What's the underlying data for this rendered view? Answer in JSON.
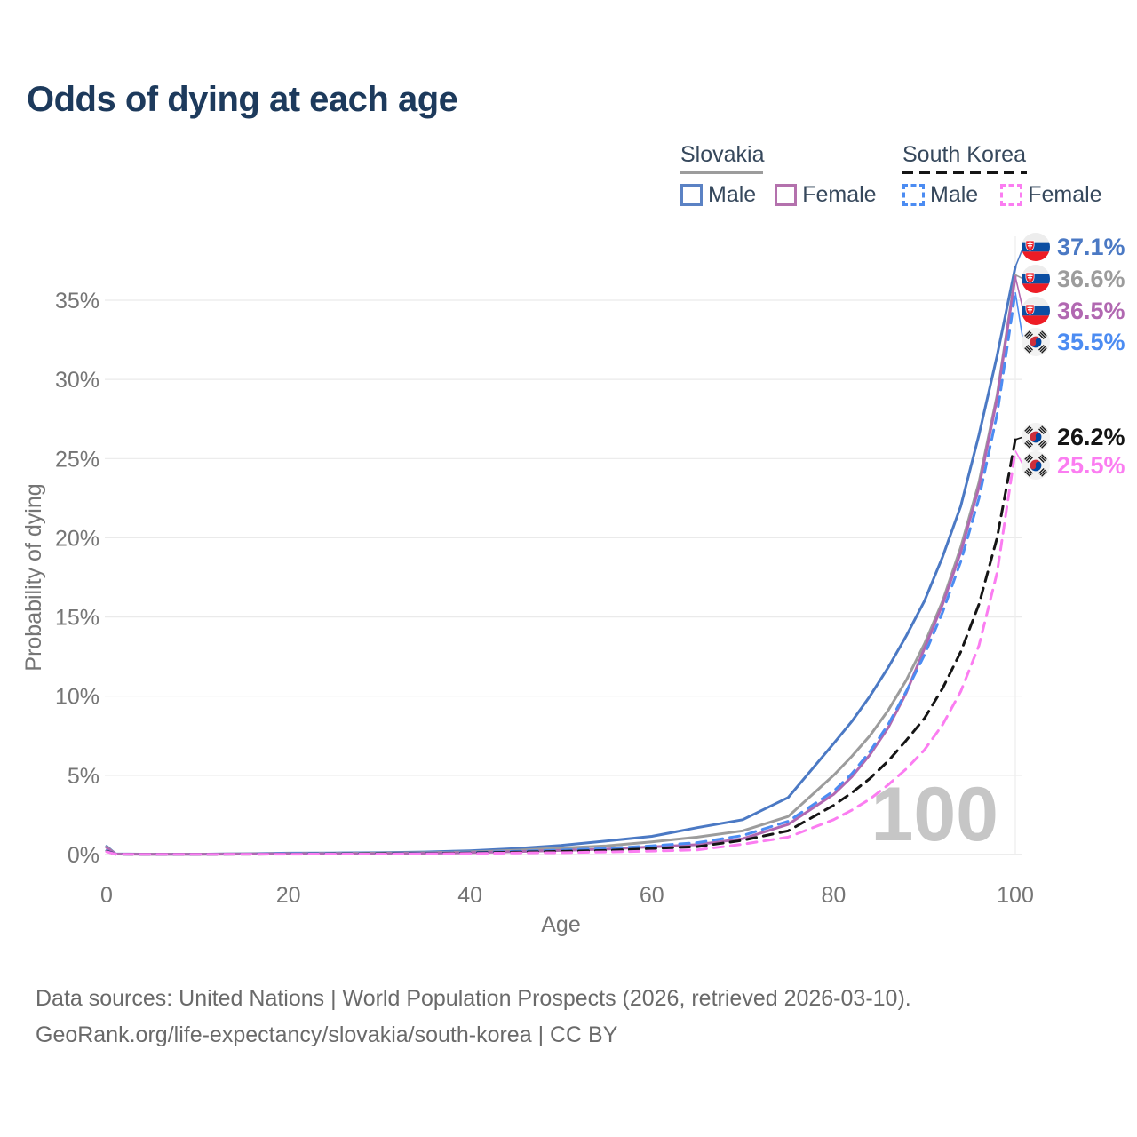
{
  "title": "Odds of dying at each age",
  "legend": {
    "groups": [
      {
        "country": "Slovakia",
        "line_style": "solid",
        "line_color": "#9c9c9c",
        "items": [
          {
            "label": "Male",
            "color": "#5b82c4",
            "style": "solid"
          },
          {
            "label": "Female",
            "color": "#b471ad",
            "style": "solid"
          }
        ]
      },
      {
        "country": "South Korea",
        "line_style": "dashed",
        "line_color": "#151515",
        "items": [
          {
            "label": "Male",
            "color": "#4c8cf2",
            "style": "dashed"
          },
          {
            "label": "Female",
            "color": "#fb7df1",
            "style": "dashed"
          }
        ]
      }
    ]
  },
  "chart_data": {
    "type": "line",
    "title": "Odds of dying at each age",
    "xlabel": "Age",
    "ylabel": "Probability of dying",
    "xlim": [
      0,
      100
    ],
    "ylim_pct": [
      0,
      38.8
    ],
    "xticks": [
      0,
      20,
      40,
      60,
      80,
      100
    ],
    "yticks_pct": [
      0,
      5,
      10,
      15,
      20,
      25,
      30,
      35
    ],
    "grid": "horizontal",
    "legend_position": "top-right",
    "watermark": "100",
    "ages": [
      0,
      1,
      5,
      10,
      15,
      20,
      25,
      30,
      35,
      40,
      45,
      50,
      55,
      60,
      65,
      70,
      75,
      80,
      82,
      84,
      86,
      88,
      90,
      92,
      94,
      96,
      98,
      100
    ],
    "series": [
      {
        "name": "Slovakia Male",
        "country": "Slovakia",
        "sex": "male",
        "flag": "sk",
        "color": "#4b79c4",
        "dash": false,
        "end_label": "37.1%",
        "end_value_pct": 37.1,
        "values": [
          0.52,
          0.04,
          0.02,
          0.02,
          0.05,
          0.09,
          0.1,
          0.12,
          0.16,
          0.24,
          0.38,
          0.58,
          0.85,
          1.15,
          1.7,
          2.2,
          3.6,
          7.0,
          8.4,
          10.0,
          11.8,
          13.8,
          16.0,
          18.8,
          22.0,
          26.5,
          31.5,
          37.1
        ]
      },
      {
        "name": "Slovakia (both sexes)",
        "country": "Slovakia",
        "sex": "total",
        "flag": "sk",
        "color": "#9c9c9c",
        "dash": false,
        "end_label": "36.6%",
        "end_value_pct": 36.6,
        "values": [
          0.48,
          0.03,
          0.02,
          0.02,
          0.04,
          0.06,
          0.07,
          0.09,
          0.12,
          0.17,
          0.27,
          0.41,
          0.55,
          0.8,
          1.1,
          1.5,
          2.4,
          5.0,
          6.2,
          7.5,
          9.1,
          11.0,
          13.3,
          16.0,
          19.4,
          23.5,
          29.0,
          36.6
        ]
      },
      {
        "name": "Slovakia Female",
        "country": "Slovakia",
        "sex": "female",
        "flag": "sk",
        "color": "#b168b1",
        "dash": false,
        "end_label": "36.5%",
        "end_value_pct": 36.5,
        "values": [
          0.44,
          0.03,
          0.01,
          0.01,
          0.03,
          0.04,
          0.04,
          0.05,
          0.08,
          0.12,
          0.18,
          0.26,
          0.34,
          0.48,
          0.62,
          1.0,
          1.9,
          3.8,
          4.9,
          6.3,
          8.0,
          10.2,
          13.0,
          15.8,
          19.1,
          23.2,
          28.8,
          36.5
        ]
      },
      {
        "name": "South Korea Male",
        "country": "South Korea",
        "sex": "male",
        "flag": "kr",
        "color": "#4c8cf2",
        "dash": true,
        "end_label": "35.5%",
        "end_value_pct": 35.5,
        "values": [
          0.24,
          0.02,
          0.01,
          0.01,
          0.03,
          0.05,
          0.05,
          0.06,
          0.09,
          0.13,
          0.2,
          0.28,
          0.38,
          0.55,
          0.75,
          1.2,
          2.1,
          4.0,
          5.1,
          6.5,
          8.2,
          10.3,
          12.6,
          15.3,
          18.5,
          22.5,
          27.8,
          35.5
        ]
      },
      {
        "name": "South Korea (both sexes)",
        "country": "South Korea",
        "sex": "total",
        "flag": "kr",
        "color": "#151515",
        "dash": true,
        "end_label": "26.2%",
        "end_value_pct": 26.2,
        "values": [
          0.21,
          0.02,
          0.01,
          0.01,
          0.02,
          0.03,
          0.04,
          0.05,
          0.07,
          0.1,
          0.15,
          0.2,
          0.26,
          0.38,
          0.5,
          0.9,
          1.5,
          3.1,
          3.9,
          4.8,
          5.9,
          7.2,
          8.6,
          10.5,
          12.8,
          15.8,
          20.0,
          26.2
        ]
      },
      {
        "name": "South Korea Female",
        "country": "South Korea",
        "sex": "female",
        "flag": "kr",
        "color": "#fb7df1",
        "dash": true,
        "end_label": "25.5%",
        "end_value_pct": 25.5,
        "values": [
          0.18,
          0.02,
          0.01,
          0.01,
          0.02,
          0.02,
          0.03,
          0.03,
          0.05,
          0.07,
          0.1,
          0.12,
          0.16,
          0.22,
          0.3,
          0.65,
          1.1,
          2.2,
          2.8,
          3.5,
          4.4,
          5.4,
          6.6,
          8.2,
          10.3,
          13.2,
          17.8,
          25.5
        ]
      }
    ]
  },
  "footer": {
    "line1": "Data sources: United Nations | World Population Prospects (2026, retrieved 2026-03-10).",
    "line2": "GeoRank.org/life-expectancy/slovakia/south-korea | CC BY"
  }
}
